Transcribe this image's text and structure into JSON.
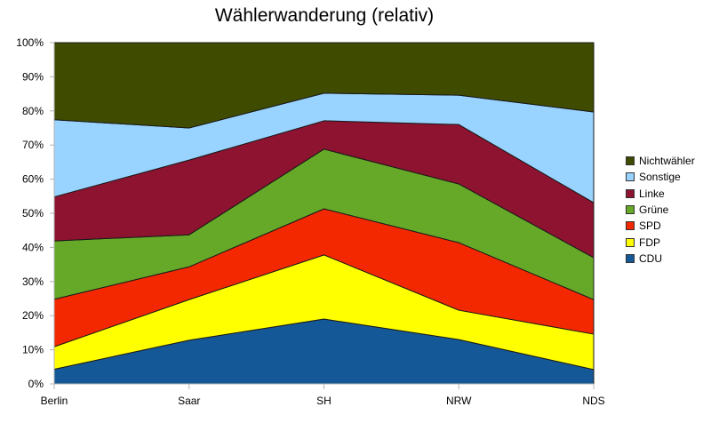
{
  "chart_data": {
    "type": "area",
    "stacked": true,
    "percent": true,
    "title": "Wählerwanderung (relativ)",
    "xlabel": "",
    "ylabel": "",
    "ylim": [
      0,
      100
    ],
    "yticks": [
      "0%",
      "10%",
      "20%",
      "30%",
      "40%",
      "50%",
      "60%",
      "70%",
      "80%",
      "90%",
      "100%"
    ],
    "categories": [
      "Berlin",
      "Saar",
      "SH",
      "NRW",
      "NDS"
    ],
    "legend_position": "right",
    "grid": false,
    "series": [
      {
        "name": "CDU",
        "color": "#155897",
        "values": [
          4.3,
          12.8,
          19.0,
          13.0,
          4.2
        ]
      },
      {
        "name": "FDP",
        "color": "#FFFF00",
        "values": [
          6.6,
          11.9,
          18.8,
          8.6,
          10.4
        ]
      },
      {
        "name": "SPD",
        "color": "#F42800",
        "values": [
          13.9,
          9.6,
          13.5,
          19.8,
          10.1
        ]
      },
      {
        "name": "Grüne",
        "color": "#66A827",
        "values": [
          17.1,
          9.4,
          17.5,
          17.2,
          12.3
        ]
      },
      {
        "name": "Linke",
        "color": "#8E1330",
        "values": [
          12.9,
          21.9,
          8.3,
          17.4,
          16.1
        ]
      },
      {
        "name": "Sonstige",
        "color": "#99D3FF",
        "values": [
          22.6,
          9.4,
          8.1,
          8.6,
          26.6
        ]
      },
      {
        "name": "Nichtwähler",
        "color": "#3F4C00",
        "values": [
          22.6,
          25.0,
          14.8,
          15.4,
          20.3
        ]
      }
    ],
    "legend_order": [
      "Nichtwähler",
      "Sonstige",
      "Linke",
      "Grüne",
      "SPD",
      "FDP",
      "CDU"
    ]
  }
}
